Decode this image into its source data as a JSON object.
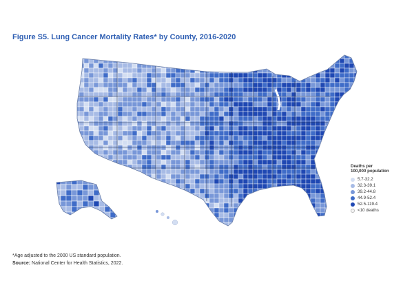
{
  "figure": {
    "title": "Figure S5. Lung Cancer Mortality Rates* by County, 2016-2020"
  },
  "legend": {
    "title_line1": "Deaths per",
    "title_line2": "100,000 population",
    "items": [
      {
        "label": "5.7-32.2",
        "color": "#d3def2"
      },
      {
        "label": "32.3-39.1",
        "color": "#a7bbe5"
      },
      {
        "label": "39.2-44.8",
        "color": "#7897d8"
      },
      {
        "label": "44.9-52.4",
        "color": "#3f6cc8"
      },
      {
        "label": "52.5-119.4",
        "color": "#1f48b3"
      },
      {
        "label": "<10 deaths",
        "color": "#f4f4f4"
      }
    ]
  },
  "footnote": {
    "note": "*Age adjusted to the 2000 US standard population.",
    "source_label": "Source:",
    "source_text": " National Center for Health Statistics, 2022."
  }
}
